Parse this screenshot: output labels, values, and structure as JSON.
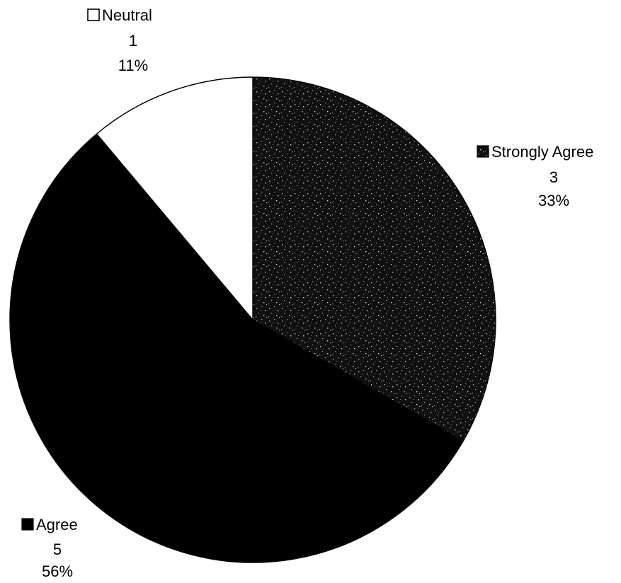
{
  "chart_data": {
    "type": "pie",
    "start_angle_deg": 0,
    "direction": "clockwise",
    "legend_placement": "data-labels",
    "slices": [
      {
        "label": "Strongly Agree",
        "value": 3,
        "percent": "33%",
        "value_text": "3",
        "fill": "#1a1a1a",
        "pattern": "speckled",
        "legend_marker": "speckled-square-icon"
      },
      {
        "label": "Agree",
        "value": 5,
        "percent": "56%",
        "value_text": "5",
        "fill": "#000000",
        "pattern": "solid",
        "legend_marker": "filled-square-icon"
      },
      {
        "label": "Neutral",
        "value": 1,
        "percent": "11%",
        "value_text": "1",
        "fill": "#ffffff",
        "pattern": "solid",
        "legend_marker": "hollow-square-icon"
      }
    ]
  }
}
